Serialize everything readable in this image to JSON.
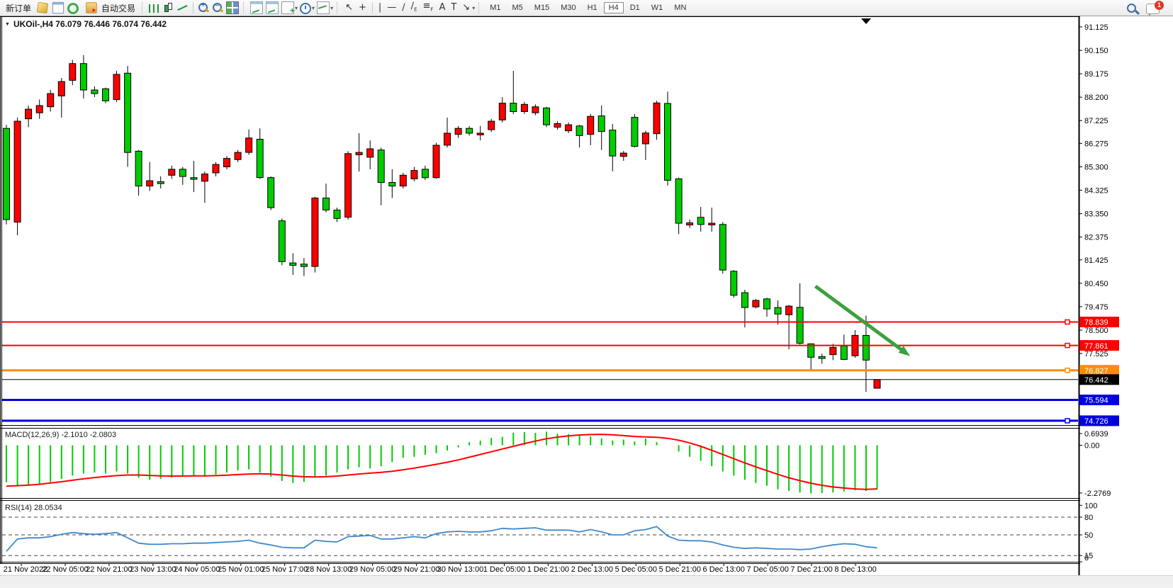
{
  "toolbar": {
    "new_order_label": "新订单",
    "autotrade_label": "自动交易",
    "timeframes": [
      "M1",
      "M5",
      "M15",
      "M30",
      "H1",
      "H4",
      "D1",
      "W1",
      "MN"
    ],
    "active_timeframe": "H4",
    "chat_badge": "1"
  },
  "chart": {
    "title": "UKOil-,H4 76.079 76.446 76.074 76.442"
  },
  "chart_data": {
    "type": "candlestick",
    "symbol": "UKOil-",
    "timeframe": "H4",
    "quote": {
      "open": 76.079,
      "high": 76.446,
      "low": 76.074,
      "close": 76.442
    },
    "up_color": "#ff0000",
    "down_color": "#00cc00",
    "price_axis_ticks": [
      91.125,
      90.15,
      89.175,
      88.2,
      87.225,
      86.275,
      85.3,
      84.325,
      83.35,
      82.375,
      81.425,
      80.45,
      79.475,
      78.5,
      77.525,
      76.55,
      74.625
    ],
    "candles": [
      [
        "g",
        86.9,
        83.1,
        87.05,
        82.9
      ],
      [
        "r",
        87.2,
        83.0,
        87.35,
        82.45
      ],
      [
        "r",
        87.7,
        87.3,
        87.85,
        86.95
      ],
      [
        "r",
        87.85,
        87.55,
        88.1,
        87.3
      ],
      [
        "r",
        88.35,
        87.8,
        88.5,
        87.6
      ],
      [
        "r",
        88.85,
        88.25,
        89.0,
        87.35
      ],
      [
        "r",
        89.6,
        88.9,
        89.75,
        88.7
      ],
      [
        "g",
        89.6,
        88.5,
        89.95,
        88.15
      ],
      [
        "g",
        88.5,
        88.35,
        88.65,
        88.2
      ],
      [
        "g",
        88.55,
        88.05,
        88.6,
        87.95
      ],
      [
        "r",
        89.15,
        88.1,
        89.3,
        88.0
      ],
      [
        "g",
        89.2,
        85.9,
        89.5,
        85.3
      ],
      [
        "g",
        85.95,
        84.5,
        86.0,
        84.1
      ],
      [
        "r",
        84.72,
        84.5,
        85.5,
        84.3
      ],
      [
        "g",
        84.68,
        84.6,
        84.9,
        84.4
      ],
      [
        "r",
        85.2,
        84.95,
        85.35,
        84.8
      ],
      [
        "g",
        85.2,
        84.9,
        85.3,
        84.55
      ],
      [
        "g",
        84.85,
        84.78,
        85.55,
        84.25
      ],
      [
        "r",
        85.0,
        84.7,
        85.1,
        83.8
      ],
      [
        "r",
        85.4,
        85.05,
        85.5,
        84.9
      ],
      [
        "r",
        85.65,
        85.3,
        85.75,
        85.2
      ],
      [
        "r",
        85.9,
        85.6,
        86.0,
        85.5
      ],
      [
        "r",
        86.5,
        85.9,
        86.85,
        85.8
      ],
      [
        "g",
        86.45,
        84.85,
        86.9,
        84.8
      ],
      [
        "g",
        84.85,
        83.6,
        84.9,
        83.5
      ],
      [
        "g",
        83.05,
        81.35,
        83.15,
        81.2
      ],
      [
        "g",
        81.3,
        81.2,
        81.7,
        80.8
      ],
      [
        "g",
        81.25,
        81.15,
        81.5,
        80.75
      ],
      [
        "r",
        84.0,
        81.15,
        84.05,
        80.9
      ],
      [
        "g",
        84.0,
        83.5,
        84.6,
        83.4
      ],
      [
        "g",
        83.5,
        83.15,
        83.6,
        83.0
      ],
      [
        "r",
        85.85,
        83.2,
        85.95,
        83.1
      ],
      [
        "r",
        85.9,
        85.8,
        86.7,
        85.1
      ],
      [
        "r",
        86.05,
        85.7,
        86.4,
        85.2
      ],
      [
        "g",
        86.0,
        84.65,
        86.1,
        83.7
      ],
      [
        "g",
        84.65,
        84.5,
        85.2,
        84.0
      ],
      [
        "r",
        84.95,
        84.5,
        85.05,
        84.4
      ],
      [
        "r",
        85.15,
        84.8,
        85.3,
        84.7
      ],
      [
        "g",
        85.2,
        84.85,
        85.35,
        84.75
      ],
      [
        "r",
        86.2,
        84.85,
        86.3,
        84.8
      ],
      [
        "r",
        86.7,
        86.2,
        87.35,
        86.1
      ],
      [
        "r",
        86.9,
        86.65,
        87.0,
        86.5
      ],
      [
        "g",
        86.9,
        86.7,
        87.0,
        86.6
      ],
      [
        "r",
        86.7,
        86.63,
        87.0,
        86.4
      ],
      [
        "r",
        87.2,
        86.85,
        87.3,
        86.75
      ],
      [
        "r",
        87.95,
        87.25,
        88.2,
        87.15
      ],
      [
        "g",
        87.95,
        87.6,
        89.3,
        87.5
      ],
      [
        "r",
        87.9,
        87.6,
        88.0,
        87.5
      ],
      [
        "r",
        87.8,
        87.55,
        87.9,
        87.45
      ],
      [
        "g",
        87.75,
        87.05,
        87.8,
        86.95
      ],
      [
        "r",
        87.1,
        86.95,
        87.2,
        86.85
      ],
      [
        "r",
        87.05,
        86.8,
        87.15,
        86.7
      ],
      [
        "g",
        87.0,
        86.6,
        87.05,
        86.1
      ],
      [
        "r",
        87.4,
        86.65,
        87.5,
        86.2
      ],
      [
        "g",
        87.42,
        86.77,
        87.86,
        86.0
      ],
      [
        "g",
        86.83,
        85.75,
        87.08,
        85.11
      ],
      [
        "r",
        85.87,
        85.73,
        85.96,
        85.55
      ],
      [
        "g",
        87.36,
        86.15,
        87.5,
        86.1
      ],
      [
        "r",
        86.71,
        86.26,
        86.8,
        85.58
      ],
      [
        "r",
        87.96,
        86.68,
        88.05,
        86.43
      ],
      [
        "g",
        87.94,
        84.74,
        88.43,
        84.52
      ],
      [
        "g",
        84.8,
        82.95,
        84.85,
        82.5
      ],
      [
        "r",
        82.97,
        82.88,
        83.1,
        82.75
      ],
      [
        "g",
        83.2,
        82.9,
        83.63,
        82.6
      ],
      [
        "r",
        82.95,
        82.88,
        83.6,
        82.6
      ],
      [
        "g",
        82.9,
        81.0,
        83.0,
        80.85
      ],
      [
        "g",
        80.95,
        79.95,
        81.0,
        79.85
      ],
      [
        "g",
        80.06,
        79.44,
        80.18,
        78.61
      ],
      [
        "r",
        79.74,
        79.47,
        79.8,
        79.4
      ],
      [
        "g",
        79.8,
        79.38,
        79.85,
        79.06
      ],
      [
        "g",
        79.44,
        79.17,
        79.74,
        78.73
      ],
      [
        "r",
        79.5,
        79.14,
        79.55,
        77.7
      ],
      [
        "g",
        79.45,
        77.95,
        80.45,
        77.9
      ],
      [
        "g",
        77.93,
        77.37,
        77.95,
        76.84
      ],
      [
        "g",
        77.4,
        77.32,
        77.52,
        77.1
      ],
      [
        "r",
        77.78,
        77.48,
        77.93,
        77.25
      ],
      [
        "g",
        77.84,
        77.28,
        78.31,
        77.25
      ],
      [
        "r",
        78.28,
        77.43,
        78.5,
        77.35
      ],
      [
        "g",
        78.28,
        77.25,
        79.1,
        75.93
      ],
      [
        "r",
        76.44,
        76.08,
        76.45,
        76.07
      ]
    ],
    "hlines": [
      {
        "price": 78.839,
        "label": "78.839",
        "color": "#ff0000",
        "width": 2,
        "handle": true
      },
      {
        "price": 77.861,
        "label": "77.861",
        "color": "#ff0000",
        "width": 2,
        "handle": true
      },
      {
        "price": 76.827,
        "label": "76.827",
        "color": "#ff8c00",
        "width": 3,
        "handle": true
      },
      {
        "price": 76.442,
        "label": "76.442",
        "color": "#000000",
        "width": 1,
        "handle": false,
        "current_price": true
      },
      {
        "price": 75.594,
        "label": "75.594",
        "color": "#0000dd",
        "width": 3,
        "handle": false
      },
      {
        "price": 74.726,
        "label": "74.726",
        "color": "#0000dd",
        "width": 3,
        "handle": true
      }
    ],
    "trend_arrow": {
      "from_bar": 73.4,
      "from_price": 80.33,
      "to_bar": 82.0,
      "to_price": 77.42,
      "color": "#3da03d",
      "width": 5
    },
    "macd": {
      "label_text": "MACD(12,26,9) -2.1010 -2.0803",
      "params": [
        12,
        26,
        9
      ],
      "main_value": -2.101,
      "signal_value": -2.0803,
      "axis_labels": [
        "0.6939",
        "0.00",
        "-2.2769"
      ],
      "histogram_color": "#00cc00",
      "signal_color": "#ff0000",
      "histogram": [
        -1.76,
        -1.93,
        -1.9,
        -1.85,
        -1.75,
        -1.6,
        -1.45,
        -1.35,
        -1.3,
        -1.35,
        -1.25,
        -1.35,
        -1.55,
        -1.65,
        -1.6,
        -1.55,
        -1.45,
        -1.45,
        -1.5,
        -1.4,
        -1.3,
        -1.2,
        -1.15,
        -1.3,
        -1.5,
        -1.7,
        -1.8,
        -1.75,
        -1.55,
        -1.45,
        -1.3,
        -1.15,
        -1.05,
        -1.1,
        -1.0,
        -0.8,
        -0.6,
        -0.55,
        -0.45,
        -0.38,
        -0.25,
        -0.1,
        0.15,
        0.22,
        0.35,
        0.4,
        0.6,
        0.63,
        0.59,
        0.65,
        0.55,
        0.53,
        0.48,
        0.42,
        0.33,
        0.23,
        0.27,
        0.18,
        0.32,
        0.15,
        0.0,
        -0.3,
        -0.55,
        -0.74,
        -1.0,
        -1.25,
        -1.45,
        -1.65,
        -1.8,
        -1.93,
        -2.1,
        -2.18,
        -2.25,
        -2.3,
        -2.28,
        -2.25,
        -2.2,
        -2.15,
        -2.18,
        -2.1
      ],
      "signal": [
        -1.95,
        -1.93,
        -1.9,
        -1.86,
        -1.8,
        -1.74,
        -1.67,
        -1.6,
        -1.54,
        -1.49,
        -1.45,
        -1.42,
        -1.42,
        -1.44,
        -1.46,
        -1.47,
        -1.47,
        -1.46,
        -1.46,
        -1.45,
        -1.43,
        -1.4,
        -1.37,
        -1.36,
        -1.38,
        -1.42,
        -1.47,
        -1.5,
        -1.51,
        -1.5,
        -1.47,
        -1.42,
        -1.37,
        -1.33,
        -1.29,
        -1.24,
        -1.17,
        -1.09,
        -1.0,
        -0.91,
        -0.81,
        -0.7,
        -0.57,
        -0.44,
        -0.31,
        -0.18,
        -0.05,
        0.08,
        0.2,
        0.31,
        0.39,
        0.45,
        0.49,
        0.51,
        0.52,
        0.5,
        0.46,
        0.42,
        0.4,
        0.38,
        0.33,
        0.24,
        0.11,
        -0.05,
        -0.24,
        -0.44,
        -0.64,
        -0.84,
        -1.03,
        -1.21,
        -1.39,
        -1.55,
        -1.69,
        -1.81,
        -1.91,
        -1.99,
        -2.04,
        -2.08,
        -2.1,
        -2.08
      ]
    },
    "rsi": {
      "label_text": "RSI(14) 28.0534",
      "period": 14,
      "value": 28.0534,
      "levels": [
        80,
        50,
        15
      ],
      "axis_labels": [
        "100",
        "80",
        "50",
        "15",
        "0"
      ],
      "line_color": "#4189cd",
      "values": [
        22,
        43,
        45,
        45,
        47,
        51,
        54,
        52,
        51,
        52,
        54,
        45,
        36,
        34,
        34,
        35,
        35,
        36,
        36,
        37,
        38,
        39,
        41,
        36,
        33,
        29,
        28,
        28,
        41,
        39,
        38,
        47,
        48,
        49,
        43,
        43,
        45,
        47,
        45,
        52,
        55,
        56,
        55,
        55,
        57,
        61,
        60,
        61,
        62,
        58,
        58,
        58,
        55,
        59,
        55,
        50,
        50,
        57,
        59,
        64,
        48,
        41,
        40,
        40,
        38,
        33,
        29,
        27,
        28,
        27,
        26,
        26,
        25,
        26,
        30,
        33,
        35,
        34,
        30,
        28
      ]
    },
    "time_axis": {
      "labels": [
        "21 Nov 2022",
        "22 Nov 05:00",
        "22 Nov 21:00",
        "23 Nov 13:00",
        "24 Nov 05:00",
        "25 Nov 01:00",
        "25 Nov 17:00",
        "28 Nov 13:00",
        "29 Nov 05:00",
        "29 Nov 21:00",
        "30 Nov 13:00",
        "1 Dec 05:00",
        "1 Dec 21:00",
        "2 Dec 13:00",
        "5 Dec 05:00",
        "5 Dec 21:00",
        "6 Dec 13:00",
        "7 Dec 05:00",
        "7 Dec 21:00",
        "8 Dec 13:00"
      ]
    }
  }
}
